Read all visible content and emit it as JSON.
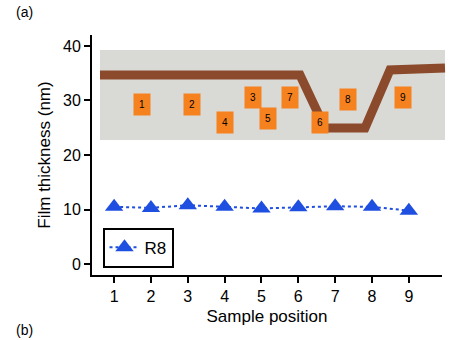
{
  "chart_data": {
    "type": "line",
    "x_label": "Sample position",
    "y_label": "Film thickness (nm)",
    "panel_labels": [
      "(a)",
      "(b)"
    ],
    "annotations": [
      "1",
      "2",
      "3",
      "4",
      "5",
      "6",
      "7",
      "8",
      "9"
    ],
    "x": [
      1,
      2,
      3,
      4,
      5,
      6,
      7,
      8,
      9
    ],
    "series": [
      {
        "name": "R8",
        "color": "#1f4fe0",
        "marker": "triangle-up",
        "line_style": "dot",
        "values": [
          10.5,
          10.3,
          10.8,
          10.5,
          10.2,
          10.4,
          10.6,
          10.5,
          9.8
        ]
      }
    ],
    "xlim": [
      0.4,
      9.9
    ],
    "xticks": [
      1,
      2,
      3,
      4,
      5,
      6,
      7,
      8,
      9
    ],
    "ylim": [
      -2,
      42
    ],
    "yticks": [
      0,
      10,
      20,
      30,
      40
    ],
    "grid": false,
    "legend": "bottom-left"
  }
}
